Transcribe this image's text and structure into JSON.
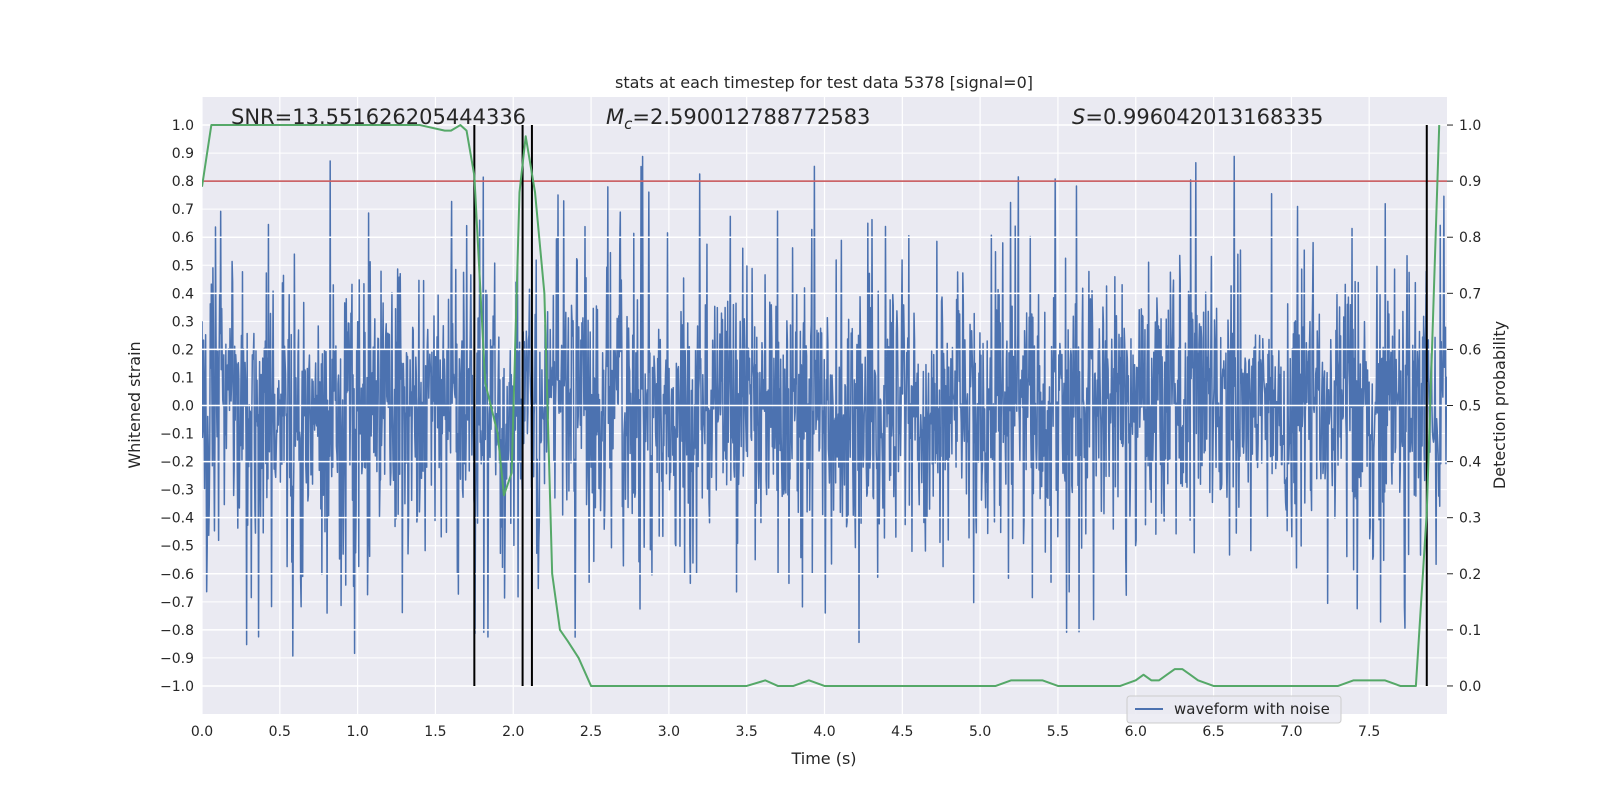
{
  "chart_data": {
    "type": "line",
    "title": "stats at each timestep for test data 5378 [signal=0]",
    "xlabel": "Time (s)",
    "ylabel": "Whitened strain",
    "ylabel_right": "Detection probability",
    "xlim": [
      0.0,
      8.0
    ],
    "ylim": [
      -1.1,
      1.1
    ],
    "ylim_right": [
      -0.05,
      1.05
    ],
    "x_ticks": [
      0.0,
      0.5,
      1.0,
      1.5,
      2.0,
      2.5,
      3.0,
      3.5,
      4.0,
      4.5,
      5.0,
      5.5,
      6.0,
      6.5,
      7.0,
      7.5
    ],
    "x_tick_labels": [
      "0.0",
      "0.5",
      "1.0",
      "1.5",
      "2.0",
      "2.5",
      "3.0",
      "3.5",
      "4.0",
      "4.5",
      "5.0",
      "5.5",
      "6.0",
      "6.5",
      "7.0",
      "7.5"
    ],
    "y_ticks": [
      1.0,
      0.9,
      0.8,
      0.7,
      0.6,
      0.5,
      0.4,
      0.3,
      0.2,
      0.1,
      0.0,
      -0.1,
      -0.2,
      -0.3,
      -0.4,
      -0.5,
      -0.6,
      -0.7,
      -0.8,
      -0.9,
      -1.0
    ],
    "y_tick_labels": [
      "1.0",
      "0.9",
      "0.8",
      "0.7",
      "0.6",
      "0.5",
      "0.4",
      "0.3",
      "0.2",
      "0.1",
      "0.0",
      "−0.1",
      "−0.2",
      "−0.3",
      "−0.4",
      "−0.5",
      "−0.6",
      "−0.7",
      "−0.8",
      "−0.9",
      "−1.0"
    ],
    "y_right_ticks": [
      1.0,
      0.9,
      0.8,
      0.7,
      0.6,
      0.5,
      0.4,
      0.3,
      0.2,
      0.1,
      0.0
    ],
    "y_right_tick_labels": [
      "1.0",
      "0.9",
      "0.8",
      "0.7",
      "0.6",
      "0.5",
      "0.4",
      "0.3",
      "0.2",
      "0.1",
      "0.0"
    ],
    "annotations": {
      "snr": "SNR=13.551626205444336",
      "mc_symbol": "M",
      "mc_sub": "c",
      "mc_value": "=2.590012788772583",
      "s_symbol": "S",
      "s_value": "=0.996042013168335"
    },
    "legend": {
      "label": "waveform with noise",
      "position": "lower-right"
    },
    "threshold": {
      "axis": "right",
      "value": 0.9,
      "color": "#c44e52"
    },
    "vertical_lines_x": [
      1.75,
      2.06,
      2.12,
      7.87
    ],
    "series": [
      {
        "name": "waveform with noise",
        "axis": "left",
        "color": "#4c72b0",
        "generator": {
          "seed": 5378,
          "samples": 2400,
          "t_end": 8.0,
          "sigma": 0.23,
          "spike_rate": 0.05,
          "spike_min": 0.45,
          "spike_max": 0.9
        }
      },
      {
        "name": "detection probability",
        "axis": "right",
        "color": "#55a868",
        "x": [
          0.0,
          0.06,
          0.2,
          0.4,
          0.6,
          0.8,
          1.0,
          1.2,
          1.4,
          1.56,
          1.6,
          1.66,
          1.7,
          1.75,
          1.82,
          1.9,
          1.94,
          1.99,
          2.04,
          2.08,
          2.14,
          2.2,
          2.25,
          2.3,
          2.35,
          2.42,
          2.5,
          2.7,
          3.0,
          3.3,
          3.5,
          3.62,
          3.7,
          3.8,
          3.9,
          4.0,
          4.2,
          4.4,
          4.6,
          4.8,
          5.0,
          5.1,
          5.2,
          5.3,
          5.4,
          5.5,
          5.6,
          5.7,
          5.8,
          5.9,
          6.0,
          6.05,
          6.1,
          6.15,
          6.2,
          6.25,
          6.3,
          6.35,
          6.4,
          6.5,
          6.6,
          6.8,
          7.0,
          7.2,
          7.3,
          7.4,
          7.45,
          7.5,
          7.55,
          7.6,
          7.7,
          7.8,
          7.87,
          7.95
        ],
        "values": [
          0.89,
          1.0,
          1.0,
          1.0,
          1.0,
          1.0,
          1.0,
          1.0,
          1.0,
          0.99,
          0.99,
          1.0,
          0.99,
          0.91,
          0.54,
          0.45,
          0.34,
          0.38,
          0.88,
          0.98,
          0.88,
          0.7,
          0.2,
          0.1,
          0.08,
          0.05,
          0.0,
          0.0,
          0.0,
          0.0,
          0.0,
          0.01,
          0.0,
          0.0,
          0.01,
          0.0,
          0.0,
          0.0,
          0.0,
          0.0,
          0.0,
          0.0,
          0.01,
          0.01,
          0.01,
          0.0,
          0.0,
          0.0,
          0.0,
          0.0,
          0.01,
          0.02,
          0.01,
          0.01,
          0.02,
          0.03,
          0.03,
          0.02,
          0.01,
          0.0,
          0.0,
          0.0,
          0.0,
          0.0,
          0.0,
          0.01,
          0.01,
          0.01,
          0.01,
          0.01,
          0.0,
          0.0,
          0.31,
          1.0
        ]
      }
    ]
  }
}
